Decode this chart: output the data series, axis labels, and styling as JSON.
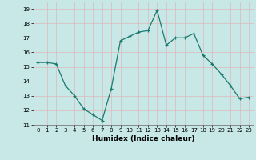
{
  "x": [
    0,
    1,
    2,
    3,
    4,
    5,
    6,
    7,
    8,
    9,
    10,
    11,
    12,
    13,
    14,
    15,
    16,
    17,
    18,
    19,
    20,
    21,
    22,
    23
  ],
  "y": [
    15.3,
    15.3,
    15.2,
    13.7,
    13.0,
    12.1,
    11.7,
    11.3,
    13.5,
    16.8,
    17.1,
    17.4,
    17.5,
    18.9,
    16.5,
    17.0,
    17.0,
    17.3,
    15.8,
    15.2,
    14.5,
    13.7,
    12.8,
    12.9
  ],
  "xlim": [
    -0.5,
    23.5
  ],
  "ylim": [
    11,
    19.5
  ],
  "yticks": [
    11,
    12,
    13,
    14,
    15,
    16,
    17,
    18,
    19
  ],
  "xticks": [
    0,
    1,
    2,
    3,
    4,
    5,
    6,
    7,
    8,
    9,
    10,
    11,
    12,
    13,
    14,
    15,
    16,
    17,
    18,
    19,
    20,
    21,
    22,
    23
  ],
  "xlabel": "Humidex (Indice chaleur)",
  "line_color": "#1a7a6e",
  "marker": "+",
  "marker_size": 3,
  "marker_linewidth": 0.9,
  "linewidth": 0.9,
  "bg_color": "#c8e8e8",
  "grid_color": "#e0b8b8",
  "tick_fontsize": 5.0,
  "xlabel_fontsize": 6.5,
  "xlabel_fontweight": "bold"
}
